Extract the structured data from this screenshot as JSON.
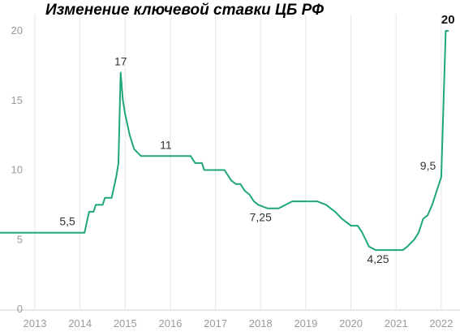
{
  "chart_data": {
    "type": "line",
    "title": "Изменение ключевой ставки ЦБ РФ",
    "xlabel": "",
    "ylabel": "",
    "ylim": [
      0,
      20
    ],
    "yticks": [
      "0",
      "5",
      "10",
      "15",
      "20"
    ],
    "xticks": [
      "2013",
      "2014",
      "2015",
      "2016",
      "2017",
      "2018",
      "2019",
      "2020",
      "2021",
      "2022"
    ],
    "grid": "vertical",
    "color": "#1fa67a",
    "series": [
      {
        "x": [
          2013.7,
          2014.1,
          2014.2,
          2014.3,
          2014.35,
          2014.5,
          2014.55,
          2014.7,
          2014.8,
          2014.85,
          2014.9,
          2014.95,
          2015.0,
          2015.1,
          2015.2,
          2015.35,
          2015.45,
          2015.6,
          2016.45,
          2016.55,
          2016.7,
          2016.75,
          2017.2,
          2017.25,
          2017.35,
          2017.45,
          2017.55,
          2017.65,
          2017.75,
          2017.85,
          2017.95,
          2018.15,
          2018.25,
          2018.4,
          2018.55,
          2018.7,
          2019.25,
          2019.45,
          2019.55,
          2019.65,
          2019.8,
          2019.9,
          2020.0,
          2020.15,
          2020.25,
          2020.4,
          2020.55,
          2021.15,
          2021.25,
          2021.4,
          2021.5,
          2021.6,
          2021.7,
          2021.8,
          2021.9,
          2022.0,
          2022.1,
          2022.15
        ],
        "y": [
          5.5,
          5.5,
          7.0,
          7.0,
          7.5,
          7.5,
          8.0,
          8.0,
          9.5,
          10.5,
          17.0,
          15.0,
          14.0,
          12.5,
          11.5,
          11.0,
          11.0,
          11.0,
          11.0,
          10.5,
          10.5,
          10.0,
          10.0,
          9.75,
          9.25,
          9.0,
          9.0,
          8.5,
          8.25,
          7.75,
          7.5,
          7.25,
          7.25,
          7.25,
          7.5,
          7.75,
          7.75,
          7.5,
          7.25,
          7.0,
          6.5,
          6.25,
          6.0,
          6.0,
          5.5,
          4.5,
          4.25,
          4.25,
          4.5,
          5.0,
          5.5,
          6.5,
          6.75,
          7.5,
          8.5,
          9.5,
          20.0,
          20.0
        ]
      }
    ],
    "annotations": [
      {
        "text": "5,5",
        "x": 2013.9,
        "y": 5.5
      },
      {
        "text": "17",
        "x": 2014.9,
        "y": 17.0
      },
      {
        "text": "11",
        "x": 2015.9,
        "y": 11.0
      },
      {
        "text": "7,25",
        "x": 2018.0,
        "y": 7.25
      },
      {
        "text": "4,25",
        "x": 2020.6,
        "y": 4.25
      },
      {
        "text": "9,5",
        "x": 2021.85,
        "y": 9.5
      },
      {
        "text": "20",
        "x": 2022.15,
        "y": 20.0,
        "bold": true
      }
    ]
  }
}
